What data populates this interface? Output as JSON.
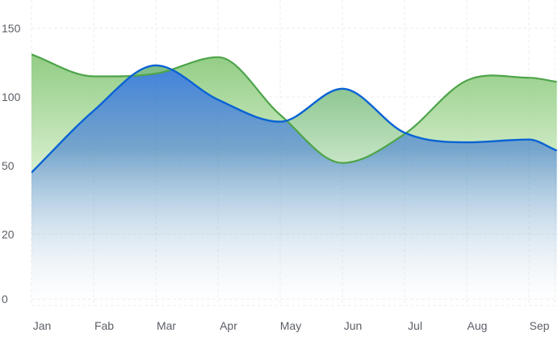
{
  "chart_data": {
    "type": "area",
    "categories": [
      "Jan",
      "Fab",
      "Mar",
      "Apr",
      "May",
      "Jun",
      "Jul",
      "Aug",
      "Sep"
    ],
    "y_ticks": [
      "0",
      "20",
      "50",
      "100",
      "150"
    ],
    "x": [
      0,
      1,
      2,
      3,
      4,
      5,
      6,
      7,
      8,
      8.45
    ],
    "series": [
      {
        "values": [
          131,
          115,
          117,
          129,
          87,
          52,
          73,
          112,
          114,
          111
        ]
      },
      {
        "values": [
          47,
          90,
          123,
          98,
          82,
          106,
          74,
          67,
          69,
          61
        ]
      }
    ],
    "title": "",
    "xlabel": "",
    "ylabel": "",
    "ylim": [
      0,
      150
    ],
    "grid": true,
    "colors": {
      "series_0_line": "#4ea44a",
      "series_0_fill_top": "#8cc97f",
      "series_0_fill_bottom": "#cdebc2",
      "series_1_line": "#0a63d4",
      "series_1_fill_top": "#2f6fb6",
      "series_1_fill_bottom": "#ffffff"
    }
  }
}
